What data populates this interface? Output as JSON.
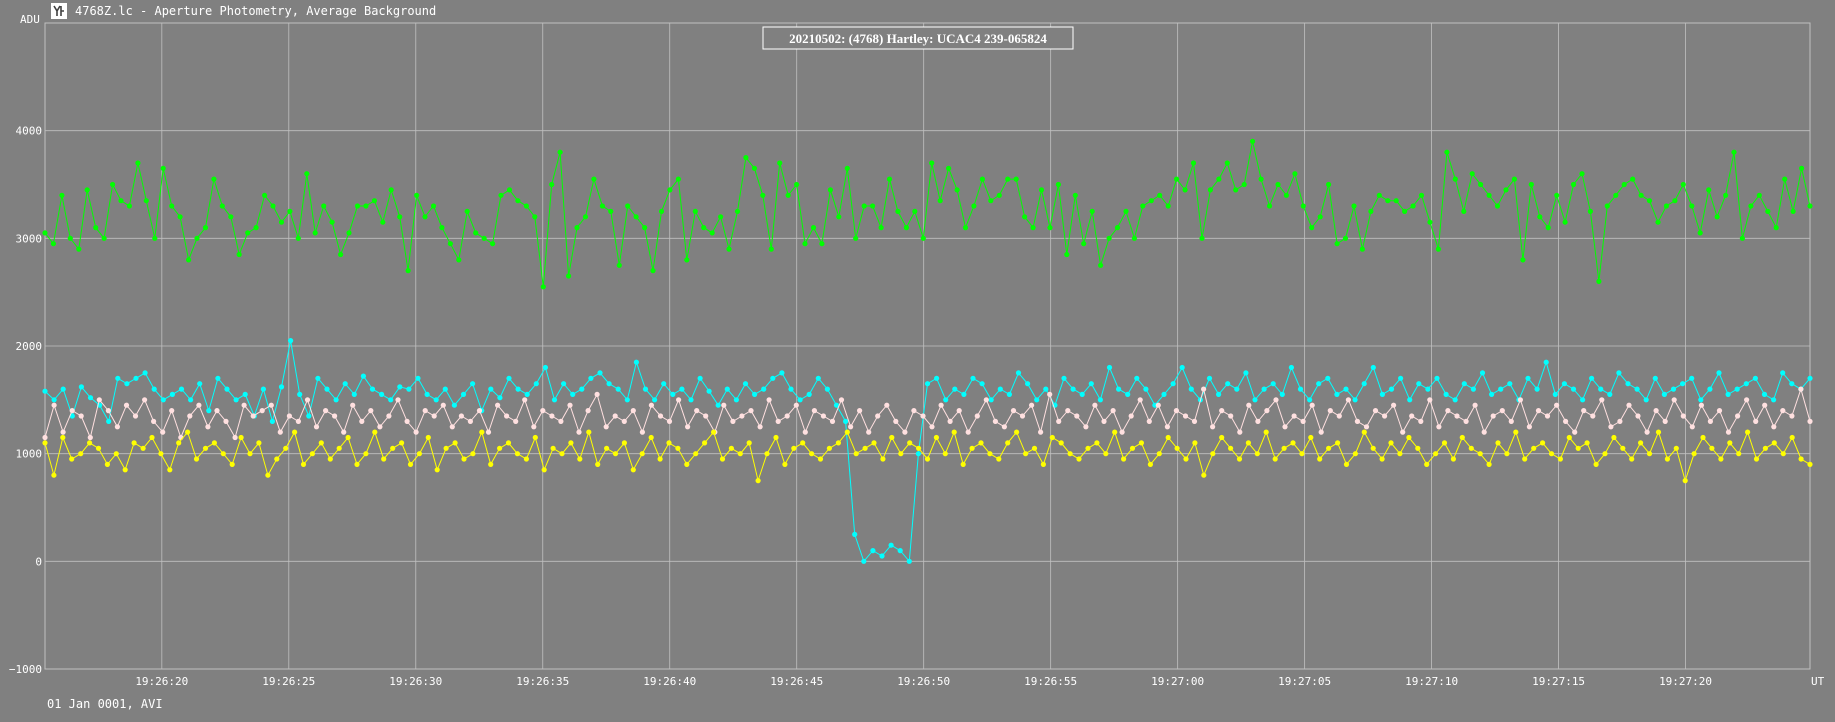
{
  "window": {
    "title": "4768Z.lc - Aperture Photometry, Average Background",
    "icon": "lightcurve-app-icon"
  },
  "footer": {
    "text": "01 Jan 0001, AVI"
  },
  "colors": {
    "background": "#808080",
    "grid": "#c0c0c0",
    "text": "#ffffff",
    "green": "#00ff00",
    "cyan": "#00ffff",
    "pink": "#ffe0e0",
    "yellow": "#ffff00"
  },
  "chart_data": {
    "type": "line",
    "title": "20210502: (4768) Hartley: UCAC4 239-065824",
    "ylabel": "ADU",
    "xlabel": "UT",
    "ylim": [
      -1000,
      5000
    ],
    "xlim": [
      "19:26:15.4",
      "19:27:24.9"
    ],
    "x_ticks": [
      "19:26:20",
      "19:26:25",
      "19:26:30",
      "19:26:35",
      "19:26:40",
      "19:26:45",
      "19:26:50",
      "19:26:55",
      "19:27:00",
      "19:27:05",
      "19:27:10",
      "19:27:15",
      "19:27:20"
    ],
    "y_ticks": [
      -1000,
      0,
      1000,
      2000,
      3000,
      4000
    ],
    "grid": true,
    "legend": "none",
    "series": [
      {
        "color": "#00ff00",
        "x_start": "19:26:15.4",
        "x_end": "19:27:24.9",
        "values": [
          3050,
          2950,
          3400,
          3000,
          2900,
          3450,
          3100,
          3000,
          3500,
          3350,
          3300,
          3700,
          3350,
          3000,
          3650,
          3300,
          3200,
          2800,
          3000,
          3100,
          3550,
          3300,
          3200,
          2850,
          3050,
          3100,
          3400,
          3300,
          3150,
          3250,
          3000,
          3600,
          3050,
          3300,
          3150,
          2850,
          3050,
          3300,
          3300,
          3350,
          3150,
          3450,
          3200,
          2700,
          3400,
          3200,
          3300,
          3100,
          2950,
          2800,
          3250,
          3050,
          3000,
          2950,
          3400,
          3450,
          3350,
          3300,
          3200,
          2550,
          3500,
          3800,
          2650,
          3100,
          3200,
          3550,
          3300,
          3250,
          2750,
          3300,
          3200,
          3100,
          2700,
          3250,
          3450,
          3550,
          2800,
          3250,
          3100,
          3050,
          3200,
          2900,
          3250,
          3750,
          3650,
          3400,
          2900,
          3700,
          3400,
          3500,
          2950,
          3100,
          2950,
          3450,
          3200,
          3650,
          3000,
          3300,
          3300,
          3100,
          3550,
          3250,
          3100,
          3250,
          3000,
          3700,
          3350,
          3650,
          3450,
          3100,
          3300,
          3550,
          3350,
          3400,
          3550,
          3550,
          3200,
          3100,
          3450,
          3100,
          3500,
          2850,
          3400,
          2950,
          3250,
          2750,
          3000,
          3100,
          3250,
          3000,
          3300,
          3350,
          3400,
          3300,
          3550,
          3450,
          3700,
          3000,
          3450,
          3550,
          3700,
          3450,
          3500,
          3900,
          3550,
          3300,
          3500,
          3400,
          3600,
          3300,
          3100,
          3200,
          3500,
          2950,
          3000,
          3300,
          2900,
          3250,
          3400,
          3350,
          3350,
          3250,
          3300,
          3400,
          3150,
          2900,
          3800,
          3550,
          3250,
          3600,
          3500,
          3400,
          3300,
          3450,
          3550,
          2800,
          3500,
          3200,
          3100,
          3400,
          3150,
          3500,
          3600,
          3250,
          2600,
          3300,
          3400,
          3500,
          3550,
          3400,
          3350,
          3150,
          3300,
          3350,
          3500,
          3300,
          3050,
          3450,
          3200,
          3400,
          3800,
          3000,
          3300,
          3400,
          3250,
          3100,
          3550,
          3250,
          3650,
          3300
        ]
      },
      {
        "color": "#00ffff",
        "x_start": "19:26:15.4",
        "x_end": "19:27:24.9",
        "values": [
          1580,
          1500,
          1600,
          1350,
          1620,
          1520,
          1450,
          1300,
          1700,
          1650,
          1700,
          1750,
          1600,
          1500,
          1550,
          1600,
          1500,
          1650,
          1400,
          1700,
          1600,
          1500,
          1550,
          1350,
          1600,
          1300,
          1620,
          2050,
          1550,
          1350,
          1700,
          1600,
          1500,
          1650,
          1550,
          1720,
          1600,
          1550,
          1500,
          1620,
          1600,
          1700,
          1550,
          1500,
          1600,
          1450,
          1550,
          1650,
          1400,
          1600,
          1520,
          1700,
          1600,
          1550,
          1650,
          1800,
          1500,
          1650,
          1550,
          1600,
          1700,
          1750,
          1650,
          1600,
          1500,
          1850,
          1600,
          1500,
          1650,
          1550,
          1600,
          1500,
          1700,
          1580,
          1450,
          1600,
          1500,
          1650,
          1550,
          1600,
          1700,
          1750,
          1600,
          1500,
          1550,
          1700,
          1600,
          1450,
          1300,
          250,
          0,
          100,
          50,
          150,
          100,
          0,
          1000,
          1650,
          1700,
          1500,
          1600,
          1550,
          1700,
          1650,
          1500,
          1600,
          1550,
          1750,
          1650,
          1500,
          1600,
          1450,
          1700,
          1600,
          1550,
          1650,
          1500,
          1800,
          1600,
          1550,
          1700,
          1600,
          1450,
          1550,
          1650,
          1800,
          1600,
          1500,
          1700,
          1550,
          1650,
          1600,
          1750,
          1500,
          1600,
          1650,
          1550,
          1800,
          1600,
          1500,
          1650,
          1700,
          1550,
          1600,
          1500,
          1650,
          1800,
          1550,
          1600,
          1700,
          1500,
          1650,
          1600,
          1700,
          1550,
          1500,
          1650,
          1600,
          1750,
          1550,
          1600,
          1650,
          1500,
          1700,
          1600,
          1850,
          1550,
          1650,
          1600,
          1500,
          1700,
          1600,
          1550,
          1750,
          1650,
          1600,
          1500,
          1700,
          1550,
          1600,
          1650,
          1700,
          1500,
          1600,
          1750,
          1550,
          1600,
          1650,
          1700,
          1550,
          1500,
          1750,
          1650,
          1600,
          1700
        ]
      },
      {
        "color": "#ffe0e0",
        "x_start": "19:26:15.4",
        "x_end": "19:27:24.9",
        "values": [
          1150,
          1450,
          1200,
          1400,
          1350,
          1150,
          1500,
          1400,
          1250,
          1450,
          1350,
          1500,
          1300,
          1200,
          1400,
          1150,
          1350,
          1450,
          1250,
          1400,
          1300,
          1150,
          1450,
          1350,
          1400,
          1450,
          1200,
          1350,
          1300,
          1500,
          1250,
          1400,
          1350,
          1200,
          1450,
          1300,
          1400,
          1250,
          1350,
          1500,
          1300,
          1200,
          1400,
          1350,
          1450,
          1250,
          1350,
          1300,
          1400,
          1200,
          1450,
          1350,
          1300,
          1500,
          1250,
          1400,
          1350,
          1300,
          1450,
          1200,
          1400,
          1550,
          1250,
          1350,
          1300,
          1400,
          1200,
          1450,
          1350,
          1300,
          1500,
          1250,
          1400,
          1350,
          1200,
          1450,
          1300,
          1350,
          1400,
          1250,
          1500,
          1300,
          1350,
          1450,
          1200,
          1400,
          1350,
          1300,
          1500,
          1250,
          1400,
          1200,
          1350,
          1450,
          1300,
          1200,
          1400,
          1350,
          1250,
          1450,
          1300,
          1400,
          1200,
          1350,
          1500,
          1300,
          1250,
          1400,
          1350,
          1450,
          1200,
          1550,
          1300,
          1400,
          1350,
          1250,
          1450,
          1300,
          1400,
          1200,
          1350,
          1500,
          1300,
          1450,
          1250,
          1400,
          1350,
          1300,
          1600,
          1250,
          1400,
          1350,
          1200,
          1450,
          1300,
          1400,
          1500,
          1250,
          1350,
          1300,
          1450,
          1200,
          1400,
          1350,
          1500,
          1300,
          1250,
          1400,
          1350,
          1450,
          1200,
          1350,
          1300,
          1500,
          1250,
          1400,
          1350,
          1300,
          1450,
          1200,
          1350,
          1400,
          1300,
          1500,
          1250,
          1400,
          1350,
          1450,
          1300,
          1200,
          1400,
          1350,
          1500,
          1250,
          1300,
          1450,
          1350,
          1200,
          1400,
          1300,
          1500,
          1350,
          1250,
          1450,
          1300,
          1400,
          1200,
          1350,
          1500,
          1300,
          1450,
          1250,
          1400,
          1350,
          1600,
          1300
        ]
      },
      {
        "color": "#ffff00",
        "x_start": "19:26:15.4",
        "x_end": "19:27:24.9",
        "values": [
          1100,
          800,
          1150,
          950,
          1000,
          1100,
          1050,
          900,
          1000,
          850,
          1100,
          1050,
          1150,
          1000,
          850,
          1100,
          1200,
          950,
          1050,
          1100,
          1000,
          900,
          1150,
          1000,
          1100,
          800,
          950,
          1050,
          1200,
          900,
          1000,
          1100,
          950,
          1050,
          1150,
          900,
          1000,
          1200,
          950,
          1050,
          1100,
          900,
          1000,
          1150,
          850,
          1050,
          1100,
          950,
          1000,
          1200,
          900,
          1050,
          1100,
          1000,
          950,
          1150,
          850,
          1050,
          1000,
          1100,
          950,
          1200,
          900,
          1050,
          1000,
          1100,
          850,
          1000,
          1150,
          950,
          1100,
          1050,
          900,
          1000,
          1100,
          1200,
          950,
          1050,
          1000,
          1100,
          750,
          1000,
          1150,
          900,
          1050,
          1100,
          1000,
          950,
          1050,
          1100,
          1200,
          1000,
          1050,
          1100,
          950,
          1150,
          1000,
          1100,
          1050,
          950,
          1150,
          1000,
          1200,
          900,
          1050,
          1100,
          1000,
          950,
          1100,
          1200,
          1000,
          1050,
          900,
          1150,
          1100,
          1000,
          950,
          1050,
          1100,
          1000,
          1200,
          950,
          1050,
          1100,
          900,
          1000,
          1150,
          1050,
          950,
          1100,
          800,
          1000,
          1150,
          1050,
          950,
          1100,
          1000,
          1200,
          950,
          1050,
          1100,
          1000,
          1150,
          950,
          1050,
          1100,
          900,
          1000,
          1200,
          1050,
          950,
          1100,
          1000,
          1150,
          1050,
          900,
          1000,
          1100,
          950,
          1150,
          1050,
          1000,
          900,
          1100,
          1000,
          1200,
          950,
          1050,
          1100,
          1000,
          950,
          1150,
          1050,
          1100,
          900,
          1000,
          1150,
          1050,
          950,
          1100,
          1000,
          1200,
          950,
          1050,
          750,
          1000,
          1150,
          1050,
          950,
          1100,
          1000,
          1200,
          950,
          1050,
          1100,
          1000,
          1150,
          950,
          900
        ]
      }
    ]
  }
}
